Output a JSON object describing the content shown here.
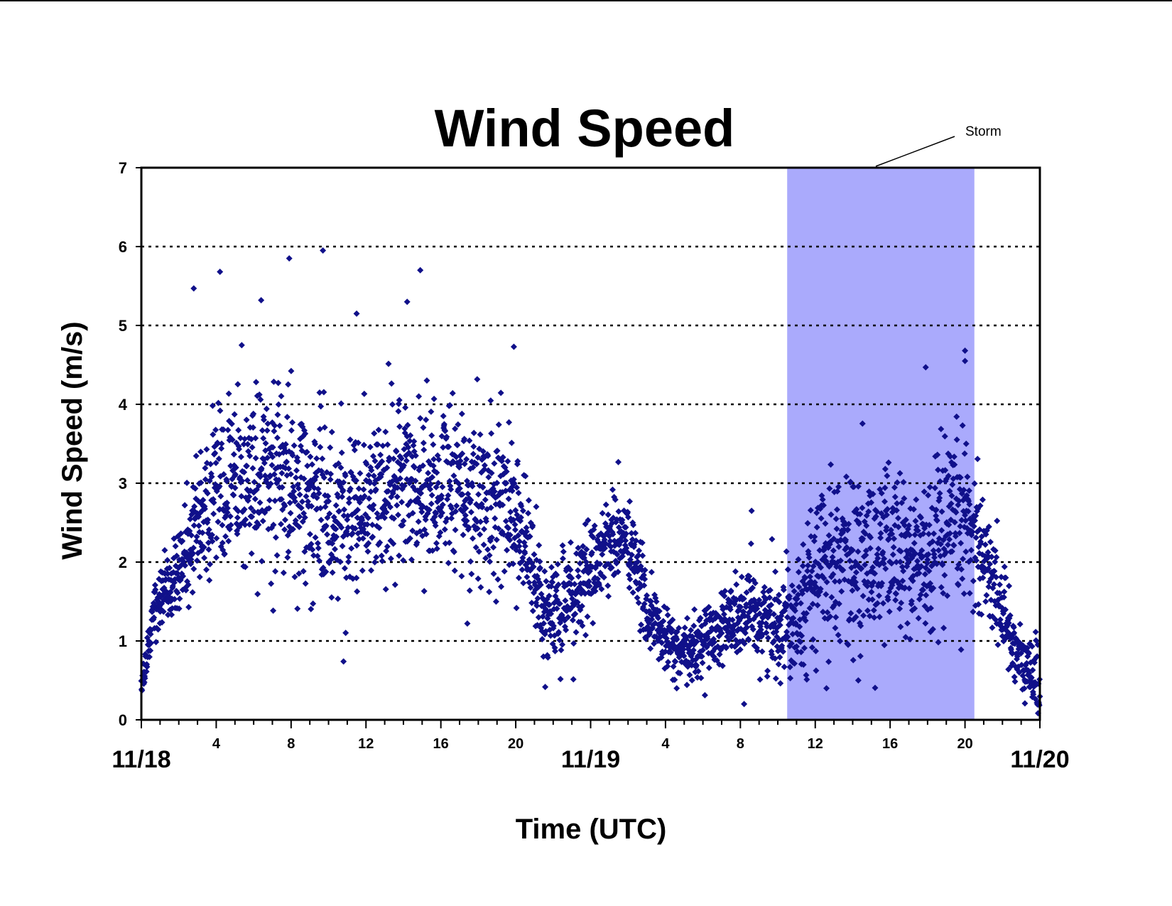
{
  "chart_data": {
    "type": "scatter",
    "title": "Wind Speed",
    "xlabel": "Time (UTC)",
    "ylabel": "Wind Speed (m/s)",
    "x_unit": "hours since 11/18 00:00 UTC",
    "xlim": [
      0,
      48
    ],
    "ylim": [
      0,
      7
    ],
    "yticks": [
      0,
      1,
      2,
      3,
      4,
      5,
      6,
      7
    ],
    "x_hour_ticks": [
      {
        "x": 4,
        "label": "4"
      },
      {
        "x": 8,
        "label": "8"
      },
      {
        "x": 12,
        "label": "12"
      },
      {
        "x": 16,
        "label": "16"
      },
      {
        "x": 20,
        "label": "20"
      },
      {
        "x": 28,
        "label": "4"
      },
      {
        "x": 32,
        "label": "8"
      },
      {
        "x": 36,
        "label": "12"
      },
      {
        "x": 40,
        "label": "16"
      },
      {
        "x": 44,
        "label": "20"
      }
    ],
    "x_date_ticks": [
      {
        "x": 0,
        "label": "11/18"
      },
      {
        "x": 24,
        "label": "11/19"
      },
      {
        "x": 48,
        "label": "11/20"
      }
    ],
    "grid": {
      "y": true,
      "x": false,
      "style": "dotted"
    },
    "marker": "diamond",
    "marker_color": "#10108a",
    "highlight": {
      "label": "Storm",
      "x_start": 34.5,
      "x_end": 44.5,
      "color": "#aaaafc"
    },
    "trend": [
      [
        0.0,
        0.35
      ],
      [
        0.3,
        0.7
      ],
      [
        0.6,
        1.4
      ],
      [
        1.2,
        1.7
      ],
      [
        2.0,
        1.9
      ],
      [
        3.0,
        2.5
      ],
      [
        4.0,
        2.9
      ],
      [
        6.0,
        3.1
      ],
      [
        8.0,
        3.0
      ],
      [
        10.0,
        2.6
      ],
      [
        12.0,
        2.8
      ],
      [
        14.0,
        3.0
      ],
      [
        16.0,
        3.0
      ],
      [
        18.0,
        2.8
      ],
      [
        20.0,
        2.7
      ],
      [
        20.8,
        2.0
      ],
      [
        21.5,
        1.3
      ],
      [
        23.0,
        1.5
      ],
      [
        24.0,
        1.9
      ],
      [
        25.0,
        2.3
      ],
      [
        26.0,
        2.3
      ],
      [
        27.0,
        1.4
      ],
      [
        28.0,
        1.0
      ],
      [
        29.0,
        0.8
      ],
      [
        30.0,
        1.0
      ],
      [
        31.0,
        1.2
      ],
      [
        32.0,
        1.3
      ],
      [
        33.0,
        1.3
      ],
      [
        34.0,
        1.2
      ],
      [
        35.0,
        1.4
      ],
      [
        36.0,
        1.8
      ],
      [
        37.0,
        2.2
      ],
      [
        38.0,
        2.0
      ],
      [
        39.0,
        2.0
      ],
      [
        40.0,
        2.2
      ],
      [
        41.0,
        2.0
      ],
      [
        42.0,
        2.0
      ],
      [
        43.0,
        2.3
      ],
      [
        44.0,
        2.6
      ],
      [
        44.5,
        2.4
      ],
      [
        45.0,
        2.1
      ],
      [
        46.0,
        1.4
      ],
      [
        47.0,
        0.7
      ],
      [
        48.0,
        0.5
      ]
    ],
    "spread": [
      [
        0.0,
        0.12
      ],
      [
        3.0,
        0.35
      ],
      [
        4.5,
        0.55
      ],
      [
        20.0,
        0.55
      ],
      [
        21.0,
        0.35
      ],
      [
        27.0,
        0.25
      ],
      [
        29.0,
        0.18
      ],
      [
        33.0,
        0.3
      ],
      [
        35.0,
        0.35
      ],
      [
        36.0,
        0.5
      ],
      [
        44.0,
        0.55
      ],
      [
        45.5,
        0.3
      ],
      [
        48.0,
        0.22
      ]
    ],
    "n_points": 3000,
    "notable_points": [
      [
        4.2,
        5.68
      ],
      [
        7.9,
        5.85
      ],
      [
        9.7,
        5.95
      ],
      [
        2.8,
        5.47
      ],
      [
        6.4,
        5.32
      ],
      [
        14.9,
        5.7
      ],
      [
        14.2,
        5.3
      ],
      [
        11.5,
        5.15
      ],
      [
        19.9,
        4.73
      ],
      [
        44.0,
        4.68
      ],
      [
        44.0,
        4.55
      ],
      [
        41.9,
        4.47
      ],
      [
        32.6,
        2.65
      ],
      [
        32.2,
        0.2
      ],
      [
        10.8,
        0.74
      ],
      [
        36.6,
        0.4
      ],
      [
        38.3,
        0.5
      ],
      [
        28.6,
        0.4
      ]
    ]
  }
}
